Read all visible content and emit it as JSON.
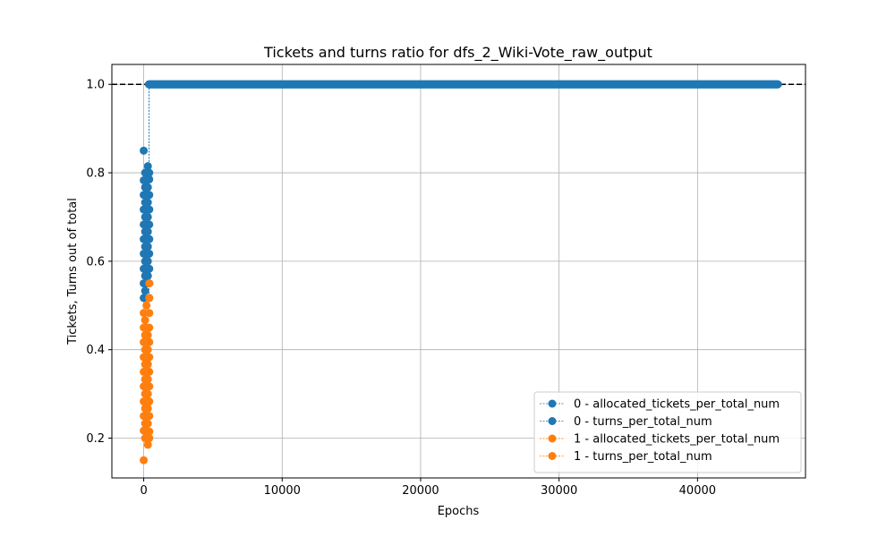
{
  "chart_data": {
    "type": "line",
    "title": "Tickets and turns ratio for dfs_2_Wiki-Vote_raw_output",
    "xlabel": "Epochs",
    "ylabel": "Tickets, Turns out of total",
    "xlim": [
      -2300,
      47800
    ],
    "ylim": [
      0.11,
      1.045
    ],
    "xticks": [
      0,
      10000,
      20000,
      30000,
      40000
    ],
    "xtick_labels": [
      "0",
      "10000",
      "20000",
      "30000",
      "40000"
    ],
    "yticks": [
      0.2,
      0.4,
      0.6,
      0.8,
      1.0
    ],
    "ytick_labels": [
      "0.2",
      "0.4",
      "0.6",
      "0.8",
      "1.0"
    ],
    "grid": true,
    "legend_position": "lower-right",
    "reference_line": {
      "y": 1.0,
      "style": "dashed",
      "color": "#000000"
    },
    "series": [
      {
        "name": "0 - allocated_tickets_per_total_num",
        "color": "#1f77b4",
        "scatter_points": [
          [
            0,
            0.85
          ],
          [
            0,
            0.517
          ],
          [
            0,
            0.55
          ],
          [
            0,
            0.583
          ],
          [
            0,
            0.617
          ],
          [
            0,
            0.65
          ],
          [
            0,
            0.683
          ],
          [
            0,
            0.717
          ],
          [
            0,
            0.75
          ],
          [
            0,
            0.783
          ],
          [
            100,
            0.533
          ],
          [
            100,
            0.567
          ],
          [
            100,
            0.6
          ],
          [
            100,
            0.633
          ],
          [
            100,
            0.667
          ],
          [
            100,
            0.7
          ],
          [
            100,
            0.733
          ],
          [
            100,
            0.767
          ],
          [
            100,
            0.8
          ],
          [
            200,
            0.55
          ],
          [
            200,
            0.583
          ],
          [
            200,
            0.617
          ],
          [
            200,
            0.65
          ],
          [
            200,
            0.683
          ],
          [
            200,
            0.717
          ],
          [
            200,
            0.75
          ],
          [
            200,
            0.783
          ],
          [
            200,
            0.8
          ],
          [
            300,
            0.567
          ],
          [
            300,
            0.6
          ],
          [
            300,
            0.633
          ],
          [
            300,
            0.667
          ],
          [
            300,
            0.7
          ],
          [
            300,
            0.733
          ],
          [
            300,
            0.767
          ],
          [
            300,
            0.815
          ],
          [
            400,
            0.517
          ],
          [
            400,
            0.55
          ],
          [
            400,
            0.583
          ],
          [
            400,
            0.617
          ],
          [
            400,
            0.65
          ],
          [
            400,
            0.683
          ],
          [
            400,
            0.717
          ],
          [
            400,
            0.75
          ],
          [
            400,
            0.785
          ],
          [
            400,
            0.8
          ]
        ],
        "plateau": {
          "x_start": 380,
          "x_end": 45800,
          "y": 1.0
        }
      },
      {
        "name": "0 - turns_per_total_num",
        "color": "#1f77b4",
        "plateau": {
          "x_start": 380,
          "x_end": 45800,
          "y": 1.0
        }
      },
      {
        "name": "1 - allocated_tickets_per_total_num",
        "color": "#ff7f0e",
        "scatter_points": [
          [
            0,
            0.15
          ],
          [
            0,
            0.483
          ],
          [
            0,
            0.45
          ],
          [
            0,
            0.417
          ],
          [
            0,
            0.383
          ],
          [
            0,
            0.35
          ],
          [
            0,
            0.317
          ],
          [
            0,
            0.283
          ],
          [
            0,
            0.25
          ],
          [
            0,
            0.217
          ],
          [
            100,
            0.467
          ],
          [
            100,
            0.433
          ],
          [
            100,
            0.4
          ],
          [
            100,
            0.367
          ],
          [
            100,
            0.333
          ],
          [
            100,
            0.3
          ],
          [
            100,
            0.267
          ],
          [
            100,
            0.233
          ],
          [
            100,
            0.2
          ],
          [
            200,
            0.5
          ],
          [
            200,
            0.45
          ],
          [
            200,
            0.417
          ],
          [
            200,
            0.383
          ],
          [
            200,
            0.35
          ],
          [
            200,
            0.317
          ],
          [
            200,
            0.283
          ],
          [
            200,
            0.25
          ],
          [
            200,
            0.217
          ],
          [
            300,
            0.433
          ],
          [
            300,
            0.4
          ],
          [
            300,
            0.367
          ],
          [
            300,
            0.333
          ],
          [
            300,
            0.3
          ],
          [
            300,
            0.267
          ],
          [
            300,
            0.233
          ],
          [
            300,
            0.185
          ],
          [
            400,
            0.55
          ],
          [
            400,
            0.517
          ],
          [
            400,
            0.483
          ],
          [
            400,
            0.45
          ],
          [
            400,
            0.417
          ],
          [
            400,
            0.383
          ],
          [
            400,
            0.35
          ],
          [
            400,
            0.317
          ],
          [
            400,
            0.283
          ],
          [
            400,
            0.25
          ],
          [
            400,
            0.215
          ],
          [
            400,
            0.2
          ]
        ]
      },
      {
        "name": "1 - turns_per_total_num",
        "color": "#ff7f0e"
      }
    ]
  }
}
